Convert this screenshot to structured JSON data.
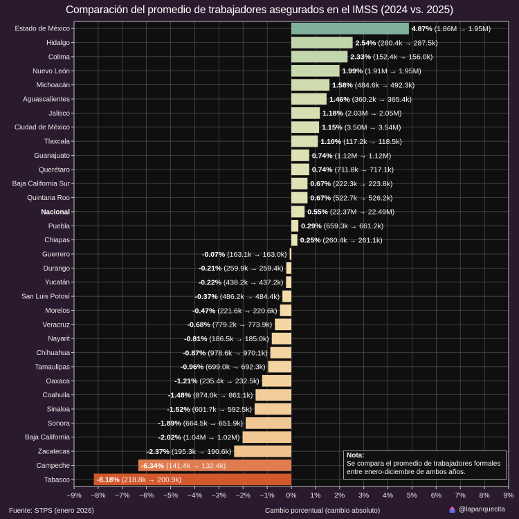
{
  "chart_data": {
    "type": "bar",
    "orientation": "horizontal",
    "title": "Comparación del promedio de trabajadores asegurados en el IMSS (2024 vs. 2025)",
    "xlabel": "Cambio porcentual (cambio absoluto)",
    "ylabel": "",
    "xlim": [
      -9,
      9
    ],
    "xticks": [
      -9,
      -8,
      -7,
      -6,
      -5,
      -4,
      -3,
      -2,
      -1,
      0,
      1,
      2,
      3,
      4,
      5,
      6,
      7,
      8,
      9
    ],
    "xtick_labels": [
      "−9%",
      "−8%",
      "−7%",
      "−6%",
      "−5%",
      "−4%",
      "−3%",
      "−2%",
      "−1%",
      "0%",
      "1%",
      "2%",
      "3%",
      "4%",
      "5%",
      "6%",
      "7%",
      "8%",
      "9%"
    ],
    "grid": true,
    "categories": [
      "Estado de México",
      "Hidalgo",
      "Colima",
      "Nuevo León",
      "Michoacán",
      "Aguascalientes",
      "Jalisco",
      "Ciudad de México",
      "Tlaxcala",
      "Guanajuato",
      "Querétaro",
      "Baja California Sur",
      "Quintana Roo",
      "Nacional",
      "Puebla",
      "Chiapas",
      "Guerrero",
      "Durango",
      "Yucatán",
      "San Luis Potosí",
      "Morelos",
      "Veracruz",
      "Nayarit",
      "Chihuahua",
      "Tamaulipas",
      "Oaxaca",
      "Coahuila",
      "Sinaloa",
      "Sonora",
      "Baja California",
      "Zacatecas",
      "Campeche",
      "Tabasco"
    ],
    "highlight_category": "Nacional",
    "values": [
      4.87,
      2.54,
      2.33,
      1.99,
      1.58,
      1.46,
      1.18,
      1.15,
      1.1,
      0.74,
      0.74,
      0.67,
      0.67,
      0.55,
      0.29,
      0.25,
      -0.07,
      -0.21,
      -0.22,
      -0.37,
      -0.47,
      -0.68,
      -0.81,
      -0.87,
      -0.96,
      -1.21,
      -1.48,
      -1.52,
      -1.89,
      -2.02,
      -2.37,
      -6.34,
      -8.18
    ],
    "from_values": [
      "1.86M",
      "280.4k",
      "152.4k",
      "1.91M",
      "484.6k",
      "360.2k",
      "2.03M",
      "3.50M",
      "117.2k",
      "1.12M",
      "711.8k",
      "222.3k",
      "522.7k",
      "22.37M",
      "659.3k",
      "260.4k",
      "163.1k",
      "259.9k",
      "438.2k",
      "486.2k",
      "221.6k",
      "779.2k",
      "186.5k",
      "978.6k",
      "699.0k",
      "235.4k",
      "874.0k",
      "601.7k",
      "664.5k",
      "1.04M",
      "195.3k",
      "141.4k",
      "218.8k"
    ],
    "to_values": [
      "1.95M",
      "287.5k",
      "156.0k",
      "1.95M",
      "492.3k",
      "365.4k",
      "2.05M",
      "3.54M",
      "118.5k",
      "1.12M",
      "717.1k",
      "223.8k",
      "526.2k",
      "22.49M",
      "661.2k",
      "261.1k",
      "163.0k",
      "259.4k",
      "437.2k",
      "484.4k",
      "220.6k",
      "773.9k",
      "185.0k",
      "970.1k",
      "692.3k",
      "232.5k",
      "861.1k",
      "592.5k",
      "651.9k",
      "1.02M",
      "190.6k",
      "132.4k",
      "200.9k"
    ],
    "data_labels": [
      "4.87%",
      "2.54%",
      "2.33%",
      "1.99%",
      "1.58%",
      "1.46%",
      "1.18%",
      "1.15%",
      "1.10%",
      "0.74%",
      "0.74%",
      "0.67%",
      "0.67%",
      "0.55%",
      "0.29%",
      "0.25%",
      "-0.07%",
      "-0.21%",
      "-0.22%",
      "-0.37%",
      "-0.47%",
      "-0.68%",
      "-0.81%",
      "-0.87%",
      "-0.96%",
      "-1.21%",
      "-1.48%",
      "-1.52%",
      "-1.89%",
      "-2.02%",
      "-2.37%",
      "-6.34%",
      "-8.18%"
    ],
    "arrow": "→",
    "colors": {
      "max_positive": "#7fb09b",
      "positive_low": "#ece7b8",
      "negative_low": "#f6e0ad",
      "negative_mid": "#f0c28e",
      "strong_negative_1": "#e07d50",
      "strong_negative_2": "#d2582e"
    }
  },
  "note": {
    "title": "Nota:",
    "line1": "Se compara el promedio de trabajadores formales",
    "line2": "entre enero-diciembre de ambos años."
  },
  "footer": {
    "source": "Fuente: STPS (enero 2026)",
    "credit": "@lapanquecita",
    "credit_icon": "pancake-icon"
  },
  "theme": {
    "background": "#2a1a2d",
    "plot_background": "#0f0f0f",
    "grid": "#555555"
  }
}
